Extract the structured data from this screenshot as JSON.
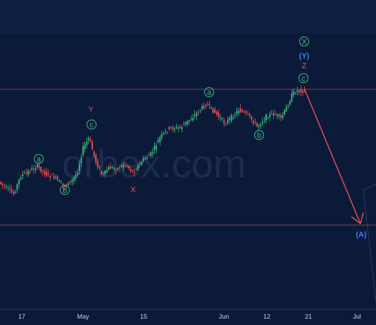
{
  "chart_data": {
    "type": "candlestick",
    "watermark": "orbex.com",
    "x_ticks": [
      "17",
      "May",
      "15",
      "Jun",
      "12",
      "21",
      "Jul"
    ],
    "colors": {
      "background": "#0c1a3a",
      "up_candle": "#3fbf7f",
      "down_candle": "#ef5350",
      "green_label": "#3fbf7f",
      "red_label": "#ef5350",
      "blue_label": "#3d7bff",
      "horizontal_line": "#d9534f",
      "projection_arrow": "#ef5350"
    },
    "wave_labels": [
      {
        "text": "a",
        "color": "green",
        "circled": true
      },
      {
        "text": "b",
        "color": "green",
        "circled": true
      },
      {
        "text": "c",
        "color": "green",
        "circled": true
      },
      {
        "text": "Y",
        "color": "red",
        "circled": false
      },
      {
        "text": "X",
        "color": "red",
        "circled": false
      },
      {
        "text": "a",
        "color": "green",
        "circled": true
      },
      {
        "text": "b",
        "color": "green",
        "circled": true
      },
      {
        "text": "c",
        "color": "green",
        "circled": true
      },
      {
        "text": "Z",
        "color": "red",
        "circled": false
      },
      {
        "text": "(Y)",
        "color": "blue",
        "circled": false
      },
      {
        "text": "X",
        "color": "green",
        "circled": true
      },
      {
        "text": "(A)",
        "color": "blue",
        "circled": false
      }
    ],
    "horizontal_levels": [
      "upper-resistance",
      "lower-target"
    ],
    "projection": {
      "from": "Z",
      "to": "(A)",
      "direction": "down"
    }
  }
}
